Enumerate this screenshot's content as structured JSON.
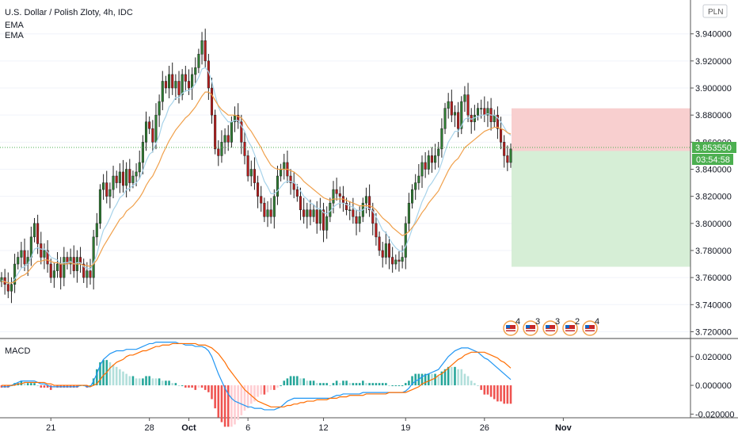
{
  "header": {
    "title": "U.S. Dollar / Polish Zloty, 4h, IDC",
    "indicators": [
      "EMA",
      "EMA"
    ],
    "currency_badge": "PLN"
  },
  "price_axis": {
    "ticks": [
      "3.940000",
      "3.920000",
      "3.900000",
      "3.880000",
      "3.860000",
      "3.840000",
      "3.820000",
      "3.800000",
      "3.780000",
      "3.760000",
      "3.740000",
      "3.720000"
    ],
    "current_price": "3.853550",
    "countdown": "03:54:58"
  },
  "macd": {
    "label": "MACD",
    "ticks": [
      "0.020000",
      "0.000000",
      "-0.020000"
    ]
  },
  "x_axis": {
    "labels": [
      "21",
      "28",
      "Oct",
      "6",
      "12",
      "19",
      "26",
      "Nov"
    ]
  },
  "colors": {
    "up": "#26a69a",
    "up_candle": "#2e7d32",
    "down": "#b71c1c",
    "ema_fast": "#a7d3ea",
    "ema_slow": "#f0a04b",
    "macd_line": "#2196f3",
    "signal_line": "#ff6d00",
    "stop_zone": "#f8cfcf",
    "target_zone": "#d6eed6",
    "price_tag": "#4caf50"
  },
  "event_flags": [
    "4",
    "3",
    "3",
    "2",
    "4"
  ],
  "chart_data": {
    "type": "candlestick",
    "title": "U.S. Dollar / Polish Zloty, 4h, IDC",
    "ylim": [
      3.715,
      3.965
    ],
    "x_labels": [
      "21",
      "28",
      "Oct",
      "6",
      "12",
      "19",
      "26",
      "Nov"
    ],
    "closes": [
      3.76,
      3.755,
      3.75,
      3.755,
      3.77,
      3.775,
      3.78,
      3.77,
      3.775,
      3.79,
      3.8,
      3.785,
      3.775,
      3.78,
      3.77,
      3.76,
      3.765,
      3.77,
      3.76,
      3.775,
      3.77,
      3.775,
      3.765,
      3.775,
      3.77,
      3.76,
      3.765,
      3.76,
      3.79,
      3.8,
      3.825,
      3.83,
      3.82,
      3.825,
      3.835,
      3.83,
      3.838,
      3.828,
      3.84,
      3.83,
      3.835,
      3.838,
      3.845,
      3.86,
      3.875,
      3.87,
      3.86,
      3.88,
      3.89,
      3.905,
      3.9,
      3.91,
      3.9,
      3.905,
      3.895,
      3.91,
      3.905,
      3.9,
      3.91,
      3.915,
      3.925,
      3.935,
      3.92,
      3.9,
      3.88,
      3.855,
      3.85,
      3.86,
      3.865,
      3.86,
      3.875,
      3.88,
      3.875,
      3.86,
      3.85,
      3.835,
      3.84,
      3.83,
      3.82,
      3.815,
      3.805,
      3.81,
      3.805,
      3.82,
      3.835,
      3.84,
      3.845,
      3.835,
      3.83,
      3.825,
      3.82,
      3.81,
      3.805,
      3.81,
      3.805,
      3.81,
      3.8,
      3.81,
      3.795,
      3.805,
      3.815,
      3.825,
      3.822,
      3.82,
      3.815,
      3.81,
      3.81,
      3.805,
      3.8,
      3.805,
      3.815,
      3.82,
      3.81,
      3.8,
      3.79,
      3.78,
      3.775,
      3.785,
      3.775,
      3.77,
      3.773,
      3.772,
      3.775,
      3.8,
      3.815,
      3.825,
      3.83,
      3.835,
      3.845,
      3.84,
      3.85,
      3.845,
      3.85,
      3.855,
      3.87,
      3.885,
      3.89,
      3.88,
      3.882,
      3.87,
      3.89,
      3.895,
      3.88,
      3.875,
      3.88,
      3.885,
      3.885,
      3.88,
      3.885,
      3.875,
      3.88,
      3.87,
      3.86,
      3.85,
      3.845,
      3.855
    ],
    "series": [
      {
        "name": "EMA",
        "values": [
          3.758,
          3.757,
          3.756,
          3.756,
          3.759,
          3.763,
          3.767,
          3.768,
          3.77,
          3.775,
          3.781,
          3.782,
          3.781,
          3.781,
          3.779,
          3.775,
          3.774,
          3.773,
          3.77,
          3.771,
          3.771,
          3.772,
          3.77,
          3.771,
          3.771,
          3.768,
          3.767,
          3.766,
          3.771,
          3.777,
          3.787,
          3.795,
          3.799,
          3.804,
          3.81,
          3.814,
          3.819,
          3.821,
          3.825,
          3.826,
          3.828,
          3.83,
          3.833,
          3.839,
          3.846,
          3.851,
          3.853,
          3.859,
          3.865,
          3.874,
          3.879,
          3.886,
          3.889,
          3.893,
          3.893,
          3.896,
          3.898,
          3.898,
          3.9,
          3.903,
          3.908,
          3.914,
          3.915,
          3.912,
          3.905,
          3.895,
          3.886,
          3.881,
          3.878,
          3.875,
          3.875,
          3.876,
          3.876,
          3.872,
          3.868,
          3.861,
          3.857,
          3.851,
          3.844,
          3.838,
          3.831,
          3.827,
          3.822,
          3.822,
          3.824,
          3.827,
          3.83,
          3.831,
          3.831,
          3.83,
          3.828,
          3.824,
          3.82,
          3.818,
          3.815,
          3.814,
          3.811,
          3.811,
          3.808,
          3.807,
          3.809,
          3.812,
          3.814,
          3.815,
          3.815,
          3.814,
          3.813,
          3.812,
          3.81,
          3.809,
          3.81,
          3.812,
          3.811,
          3.809,
          3.805,
          3.8,
          3.795,
          3.793,
          3.789,
          3.785,
          3.782,
          3.78,
          3.779,
          3.783,
          3.789,
          3.796,
          3.802,
          3.809,
          3.816,
          3.821,
          3.827,
          3.83,
          3.834,
          3.838,
          3.845,
          3.853,
          3.86,
          3.864,
          3.868,
          3.868,
          3.872,
          3.877,
          3.878,
          3.877,
          3.878,
          3.879,
          3.88,
          3.88,
          3.881,
          3.88,
          3.88,
          3.878,
          3.875,
          3.871,
          3.867,
          3.865
        ]
      },
      {
        "name": "EMA",
        "values": [
          3.757,
          3.757,
          3.756,
          3.756,
          3.757,
          3.759,
          3.761,
          3.762,
          3.764,
          3.767,
          3.77,
          3.772,
          3.772,
          3.773,
          3.773,
          3.772,
          3.771,
          3.771,
          3.77,
          3.77,
          3.77,
          3.771,
          3.77,
          3.77,
          3.77,
          3.769,
          3.769,
          3.768,
          3.77,
          3.773,
          3.778,
          3.783,
          3.787,
          3.791,
          3.795,
          3.799,
          3.803,
          3.805,
          3.809,
          3.811,
          3.813,
          3.816,
          3.819,
          3.823,
          3.828,
          3.832,
          3.835,
          3.84,
          3.845,
          3.851,
          3.856,
          3.861,
          3.865,
          3.869,
          3.872,
          3.875,
          3.878,
          3.88,
          3.883,
          3.886,
          3.89,
          3.894,
          3.897,
          3.897,
          3.895,
          3.891,
          3.887,
          3.884,
          3.882,
          3.88,
          3.88,
          3.88,
          3.879,
          3.878,
          3.875,
          3.871,
          3.868,
          3.864,
          3.86,
          3.856,
          3.851,
          3.847,
          3.843,
          3.841,
          3.84,
          3.84,
          3.84,
          3.84,
          3.839,
          3.838,
          3.836,
          3.834,
          3.831,
          3.829,
          3.827,
          3.825,
          3.823,
          3.821,
          3.819,
          3.818,
          3.817,
          3.818,
          3.818,
          3.818,
          3.818,
          3.817,
          3.816,
          3.815,
          3.814,
          3.813,
          3.813,
          3.813,
          3.813,
          3.812,
          3.81,
          3.807,
          3.804,
          3.802,
          3.8,
          3.797,
          3.795,
          3.793,
          3.791,
          3.792,
          3.794,
          3.797,
          3.8,
          3.804,
          3.808,
          3.811,
          3.815,
          3.818,
          3.821,
          3.824,
          3.829,
          3.834,
          3.839,
          3.843,
          3.846,
          3.848,
          3.852,
          3.856,
          3.858,
          3.86,
          3.862,
          3.864,
          3.866,
          3.868,
          3.869,
          3.87,
          3.871,
          3.871,
          3.87,
          3.869,
          3.867,
          3.866
        ]
      }
    ],
    "macd": {
      "ylim": [
        -0.022,
        0.032
      ],
      "macd_line": [
        -0.001,
        -0.001,
        -0.001,
        0.0,
        0.001,
        0.002,
        0.003,
        0.003,
        0.003,
        0.003,
        0.003,
        0.002,
        0.001,
        0.001,
        0.0,
        -0.001,
        -0.001,
        -0.001,
        -0.001,
        -0.001,
        -0.001,
        -0.001,
        -0.001,
        -0.001,
        0.0,
        0.0,
        -0.001,
        -0.001,
        0.003,
        0.008,
        0.014,
        0.018,
        0.02,
        0.022,
        0.023,
        0.024,
        0.024,
        0.024,
        0.025,
        0.025,
        0.025,
        0.025,
        0.026,
        0.027,
        0.028,
        0.029,
        0.029,
        0.03,
        0.03,
        0.03,
        0.03,
        0.03,
        0.03,
        0.03,
        0.029,
        0.029,
        0.028,
        0.028,
        0.028,
        0.027,
        0.027,
        0.027,
        0.026,
        0.024,
        0.02,
        0.014,
        0.008,
        0.003,
        -0.002,
        -0.006,
        -0.009,
        -0.011,
        -0.012,
        -0.013,
        -0.014,
        -0.015,
        -0.015,
        -0.016,
        -0.016,
        -0.016,
        -0.017,
        -0.017,
        -0.017,
        -0.017,
        -0.016,
        -0.015,
        -0.013,
        -0.011,
        -0.01,
        -0.009,
        -0.009,
        -0.009,
        -0.009,
        -0.009,
        -0.009,
        -0.009,
        -0.009,
        -0.009,
        -0.009,
        -0.009,
        -0.009,
        -0.008,
        -0.007,
        -0.007,
        -0.006,
        -0.006,
        -0.006,
        -0.006,
        -0.006,
        -0.006,
        -0.005,
        -0.005,
        -0.005,
        -0.005,
        -0.005,
        -0.005,
        -0.005,
        -0.005,
        -0.005,
        -0.005,
        -0.005,
        -0.005,
        -0.005,
        -0.004,
        -0.002,
        0.001,
        0.003,
        0.004,
        0.006,
        0.007,
        0.008,
        0.009,
        0.01,
        0.011,
        0.014,
        0.017,
        0.02,
        0.022,
        0.024,
        0.025,
        0.026,
        0.026,
        0.026,
        0.025,
        0.024,
        0.023,
        0.021,
        0.019,
        0.018,
        0.016,
        0.014,
        0.012,
        0.01,
        0.008,
        0.006,
        0.004
      ],
      "signal_line": [
        0.0,
        0.0,
        0.0,
        0.0,
        0.0,
        0.001,
        0.001,
        0.002,
        0.002,
        0.002,
        0.002,
        0.002,
        0.002,
        0.002,
        0.001,
        0.001,
        0.0,
        0.0,
        0.0,
        0.0,
        0.0,
        0.0,
        0.0,
        0.0,
        0.0,
        0.0,
        0.0,
        -0.001,
        0.0,
        0.001,
        0.004,
        0.007,
        0.009,
        0.012,
        0.014,
        0.016,
        0.017,
        0.018,
        0.02,
        0.021,
        0.021,
        0.022,
        0.023,
        0.024,
        0.024,
        0.025,
        0.026,
        0.027,
        0.027,
        0.028,
        0.028,
        0.028,
        0.029,
        0.029,
        0.029,
        0.029,
        0.029,
        0.029,
        0.029,
        0.029,
        0.028,
        0.028,
        0.028,
        0.027,
        0.026,
        0.024,
        0.022,
        0.019,
        0.016,
        0.012,
        0.009,
        0.006,
        0.003,
        0.0,
        -0.003,
        -0.005,
        -0.007,
        -0.009,
        -0.011,
        -0.012,
        -0.013,
        -0.014,
        -0.015,
        -0.015,
        -0.015,
        -0.015,
        -0.015,
        -0.014,
        -0.014,
        -0.013,
        -0.013,
        -0.012,
        -0.012,
        -0.011,
        -0.011,
        -0.011,
        -0.01,
        -0.01,
        -0.01,
        -0.01,
        -0.009,
        -0.009,
        -0.009,
        -0.008,
        -0.008,
        -0.008,
        -0.007,
        -0.007,
        -0.007,
        -0.007,
        -0.007,
        -0.006,
        -0.006,
        -0.006,
        -0.006,
        -0.006,
        -0.006,
        -0.006,
        -0.005,
        -0.005,
        -0.005,
        -0.005,
        -0.005,
        -0.005,
        -0.004,
        -0.003,
        -0.002,
        -0.001,
        0.001,
        0.002,
        0.003,
        0.004,
        0.005,
        0.007,
        0.008,
        0.01,
        0.012,
        0.014,
        0.016,
        0.018,
        0.019,
        0.021,
        0.022,
        0.023,
        0.023,
        0.023,
        0.023,
        0.023,
        0.022,
        0.021,
        0.02,
        0.019,
        0.017,
        0.016,
        0.014,
        0.012
      ]
    },
    "position": {
      "stop_upper": 3.885,
      "entry": 3.8535,
      "target_lower": 3.768
    }
  }
}
